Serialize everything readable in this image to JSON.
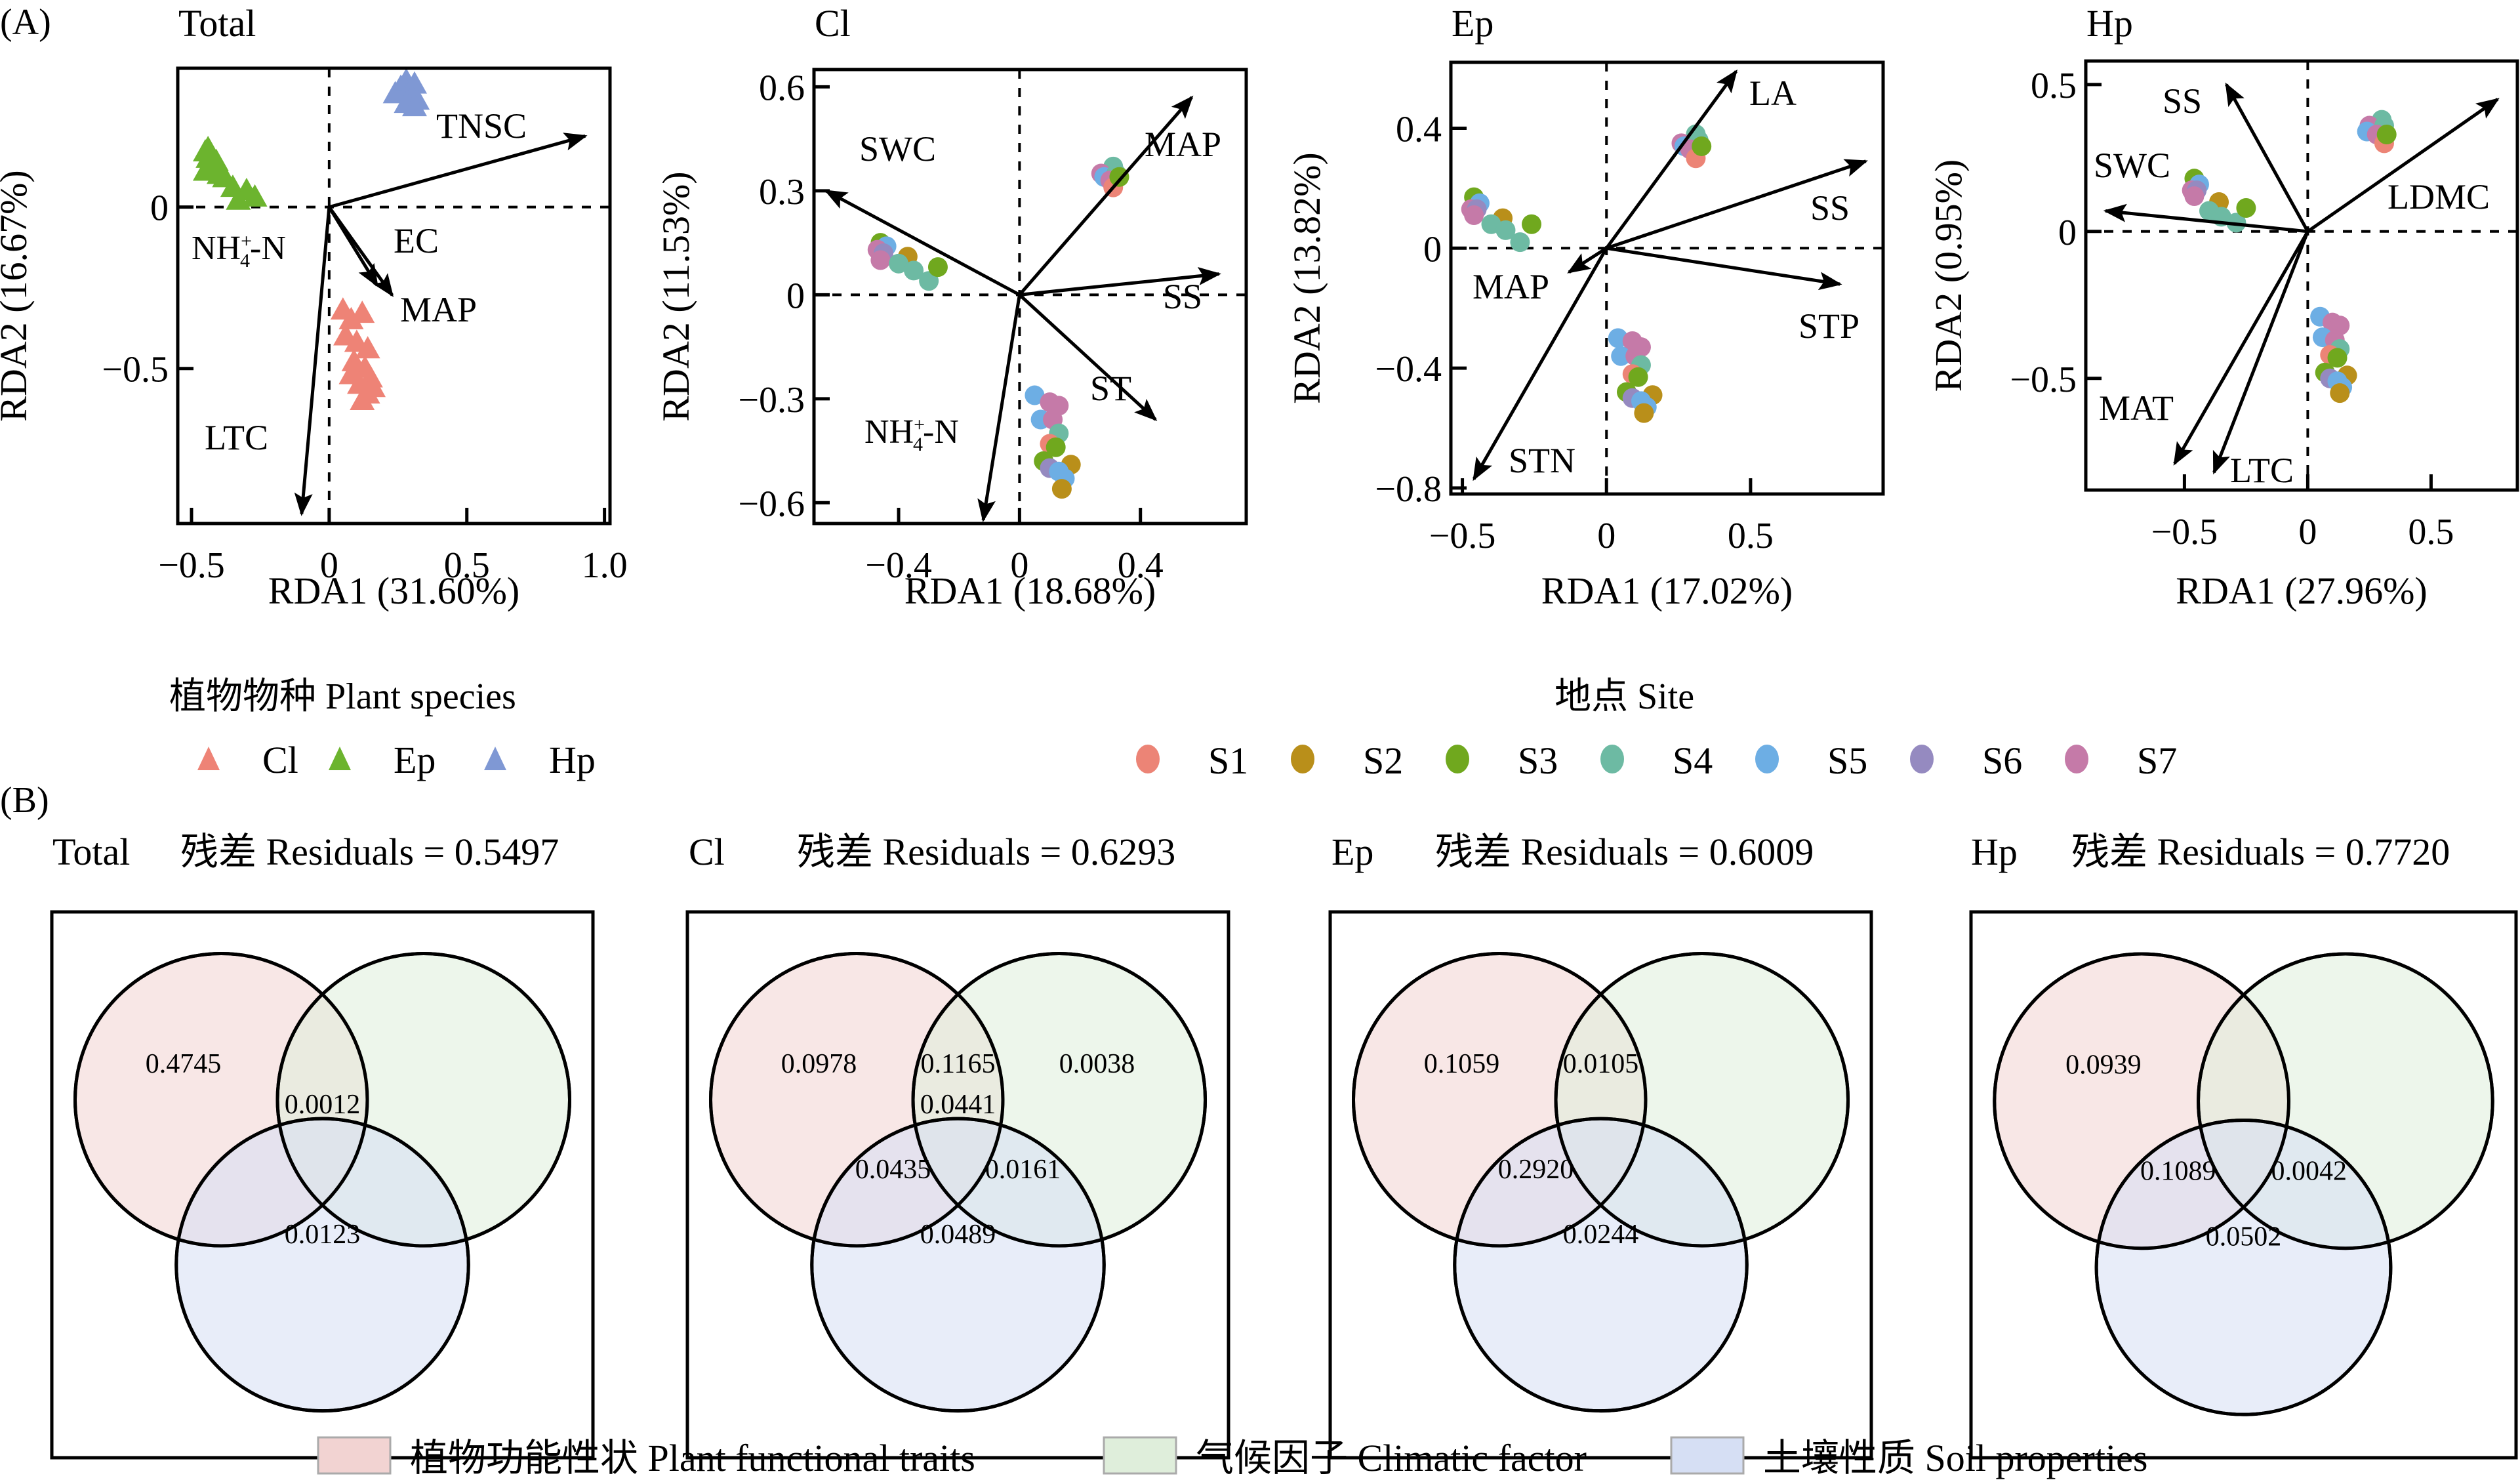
{
  "panel_labels": {
    "a": "(A)",
    "b": "(B)"
  },
  "colors": {
    "species": {
      "Cl": "#ee8376",
      "Ep": "#6cb42e",
      "Hp": "#7f98d4"
    },
    "sites": {
      "S1": "#ec8476",
      "S2": "#b98f1a",
      "S3": "#70a81e",
      "S4": "#6dbaa3",
      "S5": "#6daee4",
      "S6": "#958ac0",
      "S7": "#c57aa8"
    },
    "venn": {
      "plant": "#f2d3d2",
      "climate": "#dfeedb",
      "soil": "#d6dff4"
    }
  },
  "legend_species": {
    "title": "植物物种 Plant species",
    "items": [
      {
        "label": "Cl",
        "color": "#ee8376"
      },
      {
        "label": "Ep",
        "color": "#6cb42e"
      },
      {
        "label": "Hp",
        "color": "#7f98d4"
      }
    ]
  },
  "legend_site": {
    "title": "地点 Site",
    "items": [
      {
        "label": "S1",
        "color": "#ec8476"
      },
      {
        "label": "S2",
        "color": "#b98f1a"
      },
      {
        "label": "S3",
        "color": "#70a81e"
      },
      {
        "label": "S4",
        "color": "#6dbaa3"
      },
      {
        "label": "S5",
        "color": "#6daee4"
      },
      {
        "label": "S6",
        "color": "#958ac0"
      },
      {
        "label": "S7",
        "color": "#c57aa8"
      }
    ]
  },
  "legend_venn": {
    "items": [
      {
        "label": "植物功能性状 Plant functional traits",
        "color": "#f2d3d2"
      },
      {
        "label": "气候因子 Climatic factor",
        "color": "#dfeedb"
      },
      {
        "label": "土壤性质 Soil properties",
        "color": "#d6dff4"
      }
    ]
  },
  "chart_data": [
    {
      "type": "scatter",
      "title": "Total",
      "xlabel": "RDA1 (31.60%)",
      "ylabel": "RDA2 (16.67%)",
      "xlim": [
        -0.55,
        1.02
      ],
      "ylim": [
        -0.98,
        0.43
      ],
      "xticks": [
        -0.5,
        0,
        0.5,
        1.0
      ],
      "xtick_labels": [
        "−0.5",
        "0",
        "0.5",
        "1.0"
      ],
      "yticks": [
        0,
        -0.5
      ],
      "ytick_labels": [
        "0",
        "−0.5"
      ],
      "marker": "triangle",
      "groups": [
        {
          "name": "Cl",
          "color": "#ee8376",
          "points": [
            [
              0.05,
              -0.32
            ],
            [
              0.08,
              -0.35
            ],
            [
              0.12,
              -0.33
            ],
            [
              0.06,
              -0.4
            ],
            [
              0.1,
              -0.42
            ],
            [
              0.14,
              -0.44
            ],
            [
              0.09,
              -0.48
            ],
            [
              0.13,
              -0.5
            ],
            [
              0.15,
              -0.53
            ],
            [
              0.11,
              -0.55
            ],
            [
              0.14,
              -0.58
            ],
            [
              0.12,
              -0.6
            ],
            [
              0.08,
              -0.52
            ],
            [
              0.16,
              -0.56
            ]
          ]
        },
        {
          "name": "Ep",
          "color": "#6cb42e",
          "points": [
            [
              -0.45,
              0.17
            ],
            [
              -0.44,
              0.15
            ],
            [
              -0.43,
              0.13
            ],
            [
              -0.45,
              0.11
            ],
            [
              -0.42,
              0.12
            ],
            [
              -0.4,
              0.1
            ],
            [
              -0.38,
              0.09
            ],
            [
              -0.35,
              0.06
            ],
            [
              -0.3,
              0.05
            ],
            [
              -0.27,
              0.03
            ],
            [
              -0.33,
              0.02
            ],
            [
              -0.44,
              0.18
            ],
            [
              -0.41,
              0.14
            ]
          ]
        },
        {
          "name": "Hp",
          "color": "#7f98d4",
          "points": [
            [
              0.24,
              0.35
            ],
            [
              0.26,
              0.37
            ],
            [
              0.28,
              0.39
            ],
            [
              0.29,
              0.36
            ],
            [
              0.31,
              0.38
            ],
            [
              0.3,
              0.34
            ],
            [
              0.32,
              0.33
            ],
            [
              0.28,
              0.32
            ],
            [
              0.31,
              0.31
            ]
          ]
        }
      ],
      "arrows": [
        {
          "label": "TNSC",
          "x": 0.93,
          "y": 0.22
        },
        {
          "label": "EC",
          "x": 0.22,
          "y": -0.29
        },
        {
          "label": "MAP",
          "x": 0.24,
          "y": -0.32
        },
        {
          "label": "NH₄⁺-N",
          "x": -0.1,
          "y": -0.95
        },
        {
          "label": "LTC",
          "x": -0.1,
          "y": -0.95
        }
      ]
    },
    {
      "type": "scatter",
      "title": "Cl",
      "xlabel": "RDA1 (18.68%)",
      "ylabel": "RDA2 (11.53%)",
      "xlim": [
        -0.68,
        0.75
      ],
      "ylim": [
        -0.66,
        0.65
      ],
      "xticks": [
        -0.4,
        0,
        0.4
      ],
      "xtick_labels": [
        "−0.4",
        "0",
        "0.4"
      ],
      "yticks": [
        0.6,
        0.3,
        0,
        -0.3,
        -0.6
      ],
      "ytick_labels": [
        "0.6",
        "0.3",
        "0",
        "−0.3",
        "−0.6"
      ],
      "marker": "circle",
      "clusters": [
        {
          "site_points": [
            [
              "S4",
              0.31,
              0.37
            ],
            [
              "S7",
              0.27,
              0.35
            ],
            [
              "S5",
              0.28,
              0.34
            ],
            [
              "S4",
              0.32,
              0.35
            ],
            [
              "S7",
              0.3,
              0.33
            ],
            [
              "S1",
              0.31,
              0.31
            ],
            [
              "S3",
              0.33,
              0.34
            ]
          ]
        },
        {
          "site_points": [
            [
              "S3",
              -0.46,
              0.15
            ],
            [
              "S5",
              -0.44,
              0.14
            ],
            [
              "S7",
              -0.47,
              0.13
            ],
            [
              "S6",
              -0.45,
              0.12
            ],
            [
              "S7",
              -0.46,
              0.1
            ],
            [
              "S2",
              -0.37,
              0.11
            ],
            [
              "S4",
              -0.4,
              0.09
            ],
            [
              "S4",
              -0.35,
              0.07
            ],
            [
              "S4",
              -0.3,
              0.04
            ],
            [
              "S3",
              -0.27,
              0.08
            ]
          ]
        },
        {
          "site_points": [
            [
              "S5",
              0.05,
              -0.29
            ],
            [
              "S7",
              0.1,
              -0.31
            ],
            [
              "S7",
              0.13,
              -0.32
            ],
            [
              "S5",
              0.07,
              -0.36
            ],
            [
              "S7",
              0.11,
              -0.36
            ],
            [
              "S4",
              0.13,
              -0.4
            ],
            [
              "S1",
              0.1,
              -0.43
            ],
            [
              "S3",
              0.12,
              -0.44
            ],
            [
              "S3",
              0.08,
              -0.48
            ],
            [
              "S6",
              0.1,
              -0.5
            ],
            [
              "S2",
              0.17,
              -0.49
            ],
            [
              "S5",
              0.13,
              -0.51
            ],
            [
              "S5",
              0.15,
              -0.53
            ],
            [
              "S2",
              0.14,
              -0.56
            ]
          ]
        }
      ],
      "arrows": [
        {
          "label": "MAP",
          "x": 0.57,
          "y": 0.57
        },
        {
          "label": "SWC",
          "x": -0.64,
          "y": 0.3
        },
        {
          "label": "SS",
          "x": 0.66,
          "y": 0.06
        },
        {
          "label": "ST",
          "x": 0.45,
          "y": -0.36
        },
        {
          "label": "NH₄⁺-N",
          "x": -0.12,
          "y": -0.65
        }
      ]
    },
    {
      "type": "scatter",
      "title": "Ep",
      "xlabel": "RDA1 (17.02%)",
      "ylabel": "RDA2 (13.82%)",
      "xlim": [
        -0.54,
        0.96
      ],
      "ylim": [
        -0.82,
        0.62
      ],
      "xticks": [
        -0.5,
        0,
        0.5
      ],
      "xtick_labels": [
        "−0.5",
        "0",
        "0.5"
      ],
      "yticks": [
        0.4,
        0,
        -0.4,
        -0.8
      ],
      "ytick_labels": [
        "0.4",
        "0",
        "−0.4",
        "−0.8"
      ],
      "marker": "circle",
      "clusters": [
        {
          "site_points": [
            [
              "S4",
              0.31,
              0.38
            ],
            [
              "S7",
              0.26,
              0.35
            ],
            [
              "S5",
              0.27,
              0.34
            ],
            [
              "S4",
              0.32,
              0.36
            ],
            [
              "S7",
              0.29,
              0.33
            ],
            [
              "S1",
              0.31,
              0.3
            ],
            [
              "S3",
              0.33,
              0.34
            ]
          ]
        },
        {
          "site_points": [
            [
              "S3",
              -0.46,
              0.17
            ],
            [
              "S5",
              -0.44,
              0.15
            ],
            [
              "S7",
              -0.47,
              0.13
            ],
            [
              "S6",
              -0.45,
              0.13
            ],
            [
              "S7",
              -0.46,
              0.11
            ],
            [
              "S2",
              -0.36,
              0.1
            ],
            [
              "S4",
              -0.4,
              0.08
            ],
            [
              "S4",
              -0.35,
              0.06
            ],
            [
              "S4",
              -0.3,
              0.02
            ],
            [
              "S3",
              -0.26,
              0.08
            ]
          ]
        },
        {
          "site_points": [
            [
              "S5",
              0.04,
              -0.3
            ],
            [
              "S7",
              0.09,
              -0.31
            ],
            [
              "S7",
              0.12,
              -0.33
            ],
            [
              "S5",
              0.05,
              -0.36
            ],
            [
              "S7",
              0.1,
              -0.36
            ],
            [
              "S4",
              0.12,
              -0.39
            ],
            [
              "S1",
              0.09,
              -0.42
            ],
            [
              "S3",
              0.11,
              -0.43
            ],
            [
              "S3",
              0.07,
              -0.48
            ],
            [
              "S6",
              0.09,
              -0.5
            ],
            [
              "S2",
              0.16,
              -0.49
            ],
            [
              "S5",
              0.12,
              -0.51
            ],
            [
              "S5",
              0.14,
              -0.53
            ],
            [
              "S2",
              0.13,
              -0.55
            ]
          ]
        }
      ],
      "arrows": [
        {
          "label": "LA",
          "x": 0.45,
          "y": 0.59
        },
        {
          "label": "SS",
          "x": 0.9,
          "y": 0.29
        },
        {
          "label": "STP",
          "x": 0.81,
          "y": -0.12
        },
        {
          "label": "MAP",
          "x": -0.13,
          "y": -0.08
        },
        {
          "label": "STN",
          "x": -0.46,
          "y": -0.77
        }
      ]
    },
    {
      "type": "scatter",
      "title": "Hp",
      "xlabel": "RDA1 (27.96%)",
      "ylabel": "RDA2 (0.95%)",
      "xlim": [
        -0.9,
        0.85
      ],
      "ylim": [
        -0.88,
        0.58
      ],
      "xticks": [
        -0.5,
        0,
        0.5
      ],
      "xtick_labels": [
        "−0.5",
        "0",
        "0.5"
      ],
      "yticks": [
        0.5,
        0,
        -0.5
      ],
      "ytick_labels": [
        "0.5",
        "0",
        "−0.5"
      ],
      "marker": "circle",
      "clusters": [
        {
          "site_points": [
            [
              "S4",
              0.3,
              0.38
            ],
            [
              "S7",
              0.25,
              0.36
            ],
            [
              "S5",
              0.24,
              0.34
            ],
            [
              "S4",
              0.31,
              0.36
            ],
            [
              "S7",
              0.28,
              0.33
            ],
            [
              "S1",
              0.31,
              0.3
            ],
            [
              "S3",
              0.32,
              0.33
            ]
          ]
        },
        {
          "site_points": [
            [
              "S3",
              -0.46,
              0.18
            ],
            [
              "S5",
              -0.44,
              0.16
            ],
            [
              "S7",
              -0.47,
              0.14
            ],
            [
              "S6",
              -0.45,
              0.14
            ],
            [
              "S7",
              -0.46,
              0.12
            ],
            [
              "S2",
              -0.36,
              0.1
            ],
            [
              "S4",
              -0.4,
              0.07
            ],
            [
              "S4",
              -0.35,
              0.05
            ],
            [
              "S4",
              -0.29,
              0.03
            ],
            [
              "S3",
              -0.25,
              0.08
            ]
          ]
        },
        {
          "site_points": [
            [
              "S5",
              0.05,
              -0.29
            ],
            [
              "S7",
              0.1,
              -0.31
            ],
            [
              "S7",
              0.13,
              -0.32
            ],
            [
              "S5",
              0.06,
              -0.36
            ],
            [
              "S7",
              0.11,
              -0.37
            ],
            [
              "S4",
              0.13,
              -0.4
            ],
            [
              "S1",
              0.09,
              -0.42
            ],
            [
              "S3",
              0.12,
              -0.43
            ],
            [
              "S3",
              0.07,
              -0.48
            ],
            [
              "S6",
              0.09,
              -0.5
            ],
            [
              "S2",
              0.16,
              -0.49
            ],
            [
              "S5",
              0.12,
              -0.51
            ],
            [
              "S5",
              0.14,
              -0.53
            ],
            [
              "S2",
              0.13,
              -0.55
            ]
          ]
        }
      ],
      "arrows": [
        {
          "label": "SS",
          "x": -0.33,
          "y": 0.5
        },
        {
          "label": "SWC",
          "x": -0.82,
          "y": 0.07
        },
        {
          "label": "LDMC",
          "x": 0.77,
          "y": 0.45
        },
        {
          "label": "MAT",
          "x": -0.54,
          "y": -0.79
        },
        {
          "label": "LTC",
          "x": -0.38,
          "y": -0.82
        }
      ]
    },
    {
      "type": "venn",
      "title": "Total",
      "residual_label": "残差 Residuals = 0.5497",
      "residuals": 0.5497,
      "sets": [
        "Plant functional traits",
        "Climatic factor",
        "Soil properties"
      ],
      "regions": {
        "plant_only": "0.4745",
        "plant_climate": "",
        "climate_only": "",
        "all": "0.0012",
        "plant_soil": "",
        "climate_soil": "",
        "soil_only": "0.0123"
      }
    },
    {
      "type": "venn",
      "title": "Cl",
      "residual_label": "残差 Residuals = 0.6293",
      "residuals": 0.6293,
      "sets": [
        "Plant functional traits",
        "Climatic factor",
        "Soil properties"
      ],
      "regions": {
        "plant_only": "0.0978",
        "plant_climate": "0.1165",
        "climate_only": "0.0038",
        "all": "0.0441",
        "plant_soil": "0.0435",
        "climate_soil": "0.0161",
        "soil_only": "0.0489"
      }
    },
    {
      "type": "venn",
      "title": "Ep",
      "residual_label": "残差 Residuals = 0.6009",
      "residuals": 0.6009,
      "sets": [
        "Plant functional traits",
        "Climatic factor",
        "Soil properties"
      ],
      "regions": {
        "plant_only": "0.1059",
        "plant_climate": "0.0105",
        "climate_only": "",
        "all": "",
        "plant_soil": "0.2920",
        "climate_soil": "",
        "soil_only": "0.0244"
      }
    },
    {
      "type": "venn",
      "title": "Hp",
      "residual_label": "残差 Residuals = 0.7720",
      "residuals": 0.772,
      "sets": [
        "Plant functional traits",
        "Climatic factor",
        "Soil properties"
      ],
      "regions": {
        "plant_only": "0.0939",
        "plant_climate": "",
        "climate_only": "",
        "all": "",
        "plant_soil": "0.1089",
        "climate_soil": "0.0042",
        "soil_only": "0.0502"
      }
    }
  ]
}
